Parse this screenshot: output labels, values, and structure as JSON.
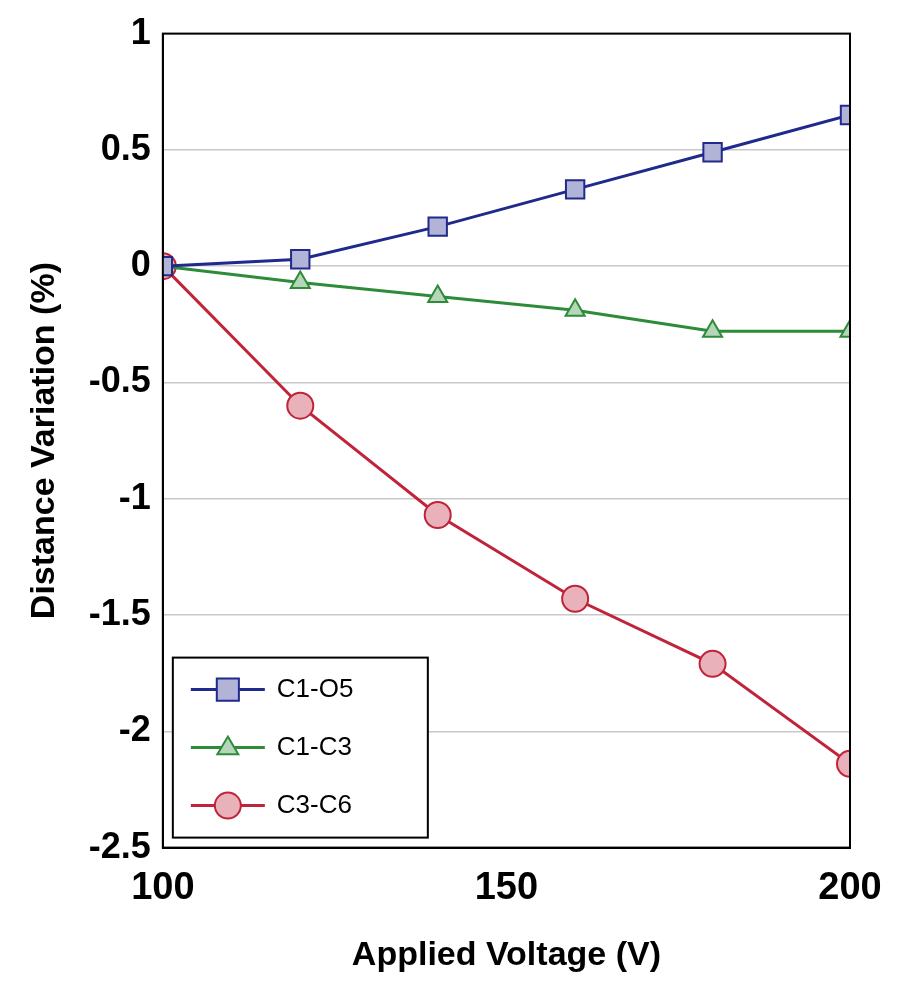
{
  "chart_data": {
    "type": "line",
    "x_label": "Applied Voltage (V)",
    "y_label": "Distance Variation (%)",
    "x": [
      100,
      120,
      140,
      160,
      180,
      200
    ],
    "series": [
      {
        "name": "C1-O5",
        "color": "#1f2a8c",
        "marker": "square",
        "values": [
          0,
          0.03,
          0.17,
          0.33,
          0.49,
          0.65
        ]
      },
      {
        "name": "C1-C3",
        "color": "#2e8b3a",
        "marker": "triangle",
        "values": [
          0,
          -0.07,
          -0.13,
          -0.19,
          -0.28,
          -0.28
        ]
      },
      {
        "name": "C3-C6",
        "color": "#c0243a",
        "marker": "circle",
        "values": [
          0,
          -0.6,
          -1.07,
          -1.43,
          -1.71,
          -2.14
        ]
      }
    ],
    "xlim": [
      100,
      200
    ],
    "xticks": [
      100,
      150,
      200
    ],
    "ylim": [
      -2.5,
      1
    ],
    "yticks": [
      -2.5,
      -2,
      -1.5,
      -1,
      -0.5,
      0,
      0.5,
      1
    ],
    "grid": true,
    "legend": "lower left"
  }
}
